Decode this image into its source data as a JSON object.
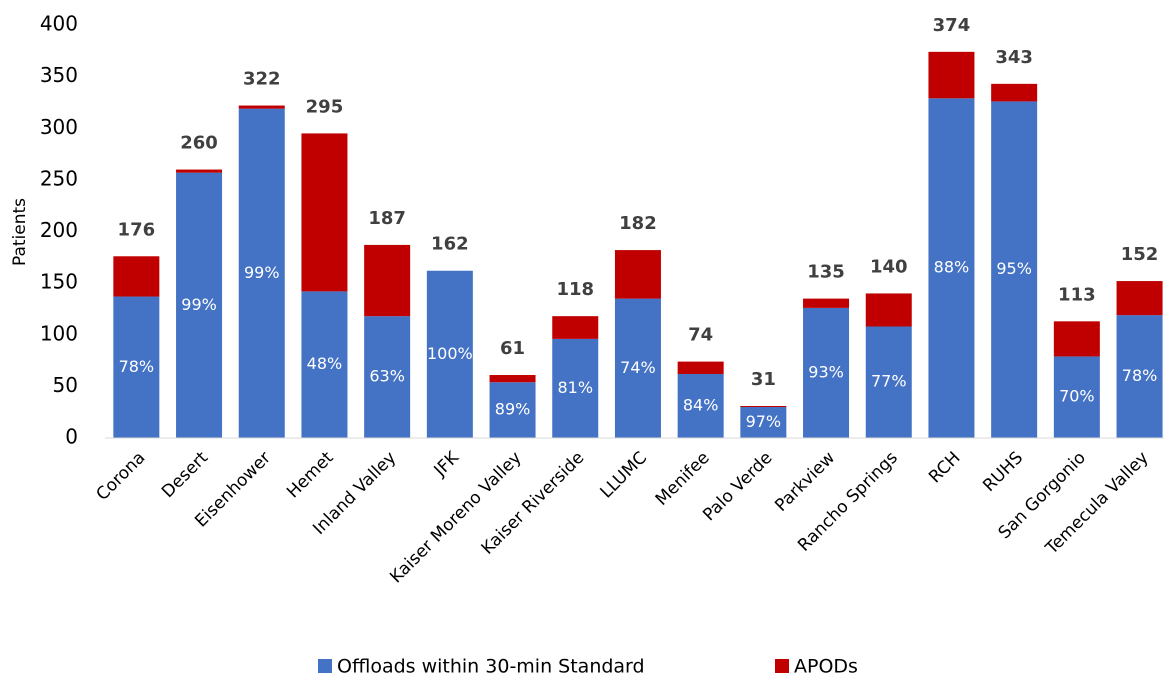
{
  "chart_data": {
    "type": "stacked_bar",
    "y_label": "Patients",
    "categories": [
      "Corona",
      "Desert",
      "Eisenhower",
      "Hemet",
      "Inland Valley",
      "JFK",
      "Kaiser  Moreno Valley",
      "Kaiser Riverside",
      "LLUMC",
      "Menifee",
      "Palo Verde",
      "Parkview",
      "Rancho Springs",
      "RCH",
      "RUHS",
      "San Gorgonio",
      "Temecula Valley"
    ],
    "series": [
      {
        "name": "Offloads within 30-min Standard",
        "color": "#4472c4",
        "values": [
          137,
          257,
          319,
          142,
          118,
          162,
          54,
          96,
          135,
          62,
          30,
          126,
          108,
          329,
          326,
          79,
          119
        ],
        "share_labels": [
          "78%",
          "99%",
          "99%",
          "48%",
          "63%",
          "100%",
          "89%",
          "81%",
          "74%",
          "84%",
          "97%",
          "93%",
          "77%",
          "88%",
          "95%",
          "70%",
          "78%"
        ]
      },
      {
        "name": "APODs",
        "color": "#c00000",
        "values": [
          39,
          3,
          3,
          153,
          69,
          0,
          7,
          22,
          47,
          12,
          1,
          9,
          32,
          45,
          17,
          34,
          33
        ]
      }
    ],
    "totals": [
      176,
      260,
      322,
      295,
      187,
      162,
      61,
      118,
      182,
      74,
      31,
      135,
      140,
      374,
      343,
      113,
      152
    ],
    "ylim": [
      0,
      400
    ],
    "yticks": [
      0,
      50,
      100,
      150,
      200,
      250,
      300,
      350,
      400
    ],
    "grid": false
  }
}
